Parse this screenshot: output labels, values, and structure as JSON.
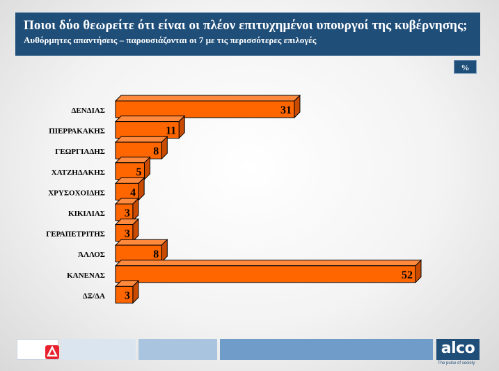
{
  "header": {
    "title": "Ποιοι δύο θεωρείτε ότι είναι οι πλέον επιτυχημένοι υπουργοί της κυβέρνησης;",
    "subtitle": "Αυθόρμητες απαντήσεις – παρουσιάζονται οι 7 με τις περισσότερες επιλογές"
  },
  "unit_label": "%",
  "chart_data": {
    "type": "bar",
    "orientation": "horizontal",
    "categories": [
      "ΔΕΝΔΙΑΣ",
      "ΠΙΕΡΡΑΚΑΚΗΣ",
      "ΓΕΩΡΓΙΑΔΗΣ",
      "ΧΑΤΖΗΔΑΚΗΣ",
      "ΧΡΥΣΟΧΟΙΔΗΣ",
      "ΚΙΚΙΛΙΑΣ",
      "ΓΕΡΑΠΕΤΡΙΤΗΣ",
      "ΆΛΛΟΣ",
      "ΚΑΝΕΝΑΣ",
      "ΔΞ/ΔΑ"
    ],
    "values": [
      31,
      11,
      8,
      5,
      4,
      3,
      3,
      8,
      52,
      3
    ],
    "xlim": [
      0,
      52
    ],
    "bar_color": "#ff6600",
    "grid": false
  },
  "footer": {
    "brand": "alco",
    "tagline": "The pulse of society",
    "brand_color": "#1f4e79"
  }
}
